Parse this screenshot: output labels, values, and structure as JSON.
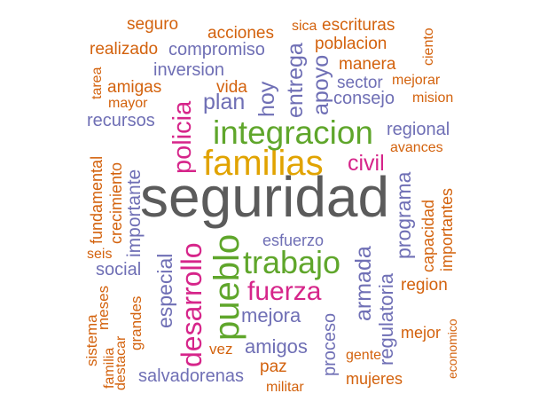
{
  "words": {
    "seguridad": "seguridad",
    "familias": "familias",
    "integracion": "integracion",
    "trabajo": "trabajo",
    "pueblo": "pueblo",
    "desarrollo": "desarrollo",
    "fuerza": "fuerza",
    "policia": "policia",
    "civil": "civil",
    "mejora": "mejora",
    "amigos": "amigos",
    "plan": "plan",
    "hoy": "hoy",
    "entrega": "entrega",
    "apoyo": "apoyo",
    "compromiso": "compromiso",
    "inversion": "inversion",
    "realizado": "realizado",
    "seguro": "seguro",
    "acciones": "acciones",
    "sica": "sica",
    "escrituras": "escrituras",
    "poblacion": "poblacion",
    "ciento": "ciento",
    "manera": "manera",
    "sector": "sector",
    "mejorar": "mejorar",
    "consejo": "consejo",
    "mision": "mision",
    "amigas": "amigas",
    "vida": "vida",
    "tarea": "tarea",
    "mayor": "mayor",
    "recursos": "recursos",
    "regional": "regional",
    "avances": "avances",
    "fundamental": "fundamental",
    "crecimiento": "crecimiento",
    "importante": "importante",
    "programa": "programa",
    "capacidad": "capacidad",
    "importantes": "importantes",
    "esfuerzo": "esfuerzo",
    "especial": "especial",
    "armada": "armada",
    "social": "social",
    "seis": "seis",
    "region": "region",
    "regulatoria": "regulatoria",
    "grandes": "grandes",
    "meses": "meses",
    "sistema": "sistema",
    "familia": "familia",
    "destacar": "destacar",
    "vez": "vez",
    "proceso": "proceso",
    "gente": "gente",
    "mejor": "mejor",
    "economico": "economico",
    "salvadorenas": "salvadorenas",
    "paz": "paz",
    "militar": "militar",
    "mujeres": "mujeres"
  },
  "colors": {
    "gray": "#5b5b5b",
    "orange": "#d3620d",
    "purple": "#6f6fb5",
    "pink": "#d6258a",
    "green": "#5fa62b",
    "gold": "#e1a300"
  }
}
